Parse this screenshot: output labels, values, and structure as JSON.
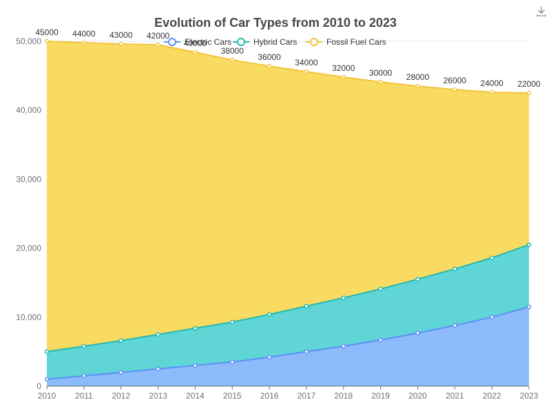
{
  "chart_data": {
    "type": "area",
    "stacked": true,
    "title": "Evolution of Car Types from 2010 to 2023",
    "categories": [
      "2010",
      "2011",
      "2012",
      "2013",
      "2014",
      "2015",
      "2016",
      "2017",
      "2018",
      "2019",
      "2020",
      "2021",
      "2022",
      "2023"
    ],
    "series": [
      {
        "name": "Electric Cars",
        "color": "#5b8ff9",
        "fill": "#86b6fb",
        "values": [
          1000,
          1500,
          2000,
          2500,
          3000,
          3500,
          4200,
          5000,
          5800,
          6700,
          7700,
          8800,
          10000,
          11500
        ]
      },
      {
        "name": "Hybrid Cars",
        "color": "#25b8ad",
        "fill": "#56d3d3",
        "values": [
          4000,
          4300,
          4600,
          5000,
          5400,
          5800,
          6200,
          6600,
          7000,
          7400,
          7800,
          8200,
          8600,
          9000
        ]
      },
      {
        "name": "Fossil Fuel Cars",
        "color": "#f2c43a",
        "fill": "#f9d95a",
        "values": [
          45000,
          44000,
          43000,
          42000,
          40000,
          38000,
          36000,
          34000,
          32000,
          30000,
          28000,
          26000,
          24000,
          22000
        ]
      }
    ],
    "ylim": [
      0,
      50000
    ],
    "yticks": [
      "0",
      "10,000",
      "20,000",
      "30,000",
      "40,000",
      "50,000"
    ],
    "data_labels_on": "Fossil Fuel Cars",
    "legend_position": "top-center",
    "grid": true
  },
  "toolbox": {
    "download_icon": "download-icon"
  }
}
